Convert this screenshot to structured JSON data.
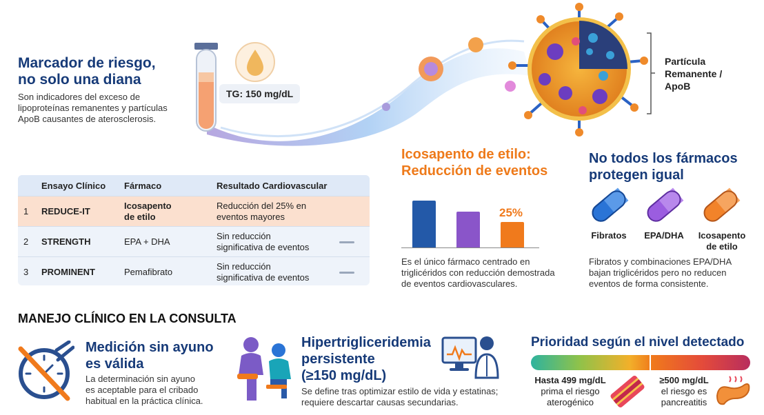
{
  "hero": {
    "title_line1": "Marcador de riesgo,",
    "title_line2": "no solo una diana",
    "desc_line1": "Son indicadores del exceso de",
    "desc_line2": "lipoproteínas remanentes y partículas",
    "desc_line3": "ApoB causantes de aterosclerosis.",
    "tg_label": "TG: 150 mg/dL",
    "particle_label_line1": "Partícula",
    "particle_label_line2": "Remanente /",
    "particle_label_line3": "ApoB"
  },
  "trials": {
    "headers": [
      "Ensayo Clínico",
      "Fármaco",
      "Resultado Cardiovascular"
    ],
    "rows": [
      {
        "num": "1",
        "trial": "REDUCE-IT",
        "drug_l1": "Icosapento",
        "drug_l2": "de etilo",
        "result_l1": "Reducción del 25% en",
        "result_l2": "eventos mayores"
      },
      {
        "num": "2",
        "trial": "STRENGTH",
        "drug_l1": "EPA + DHA",
        "drug_l2": "",
        "result_l1": "Sin reducción",
        "result_l2": "significativa de eventos"
      },
      {
        "num": "3",
        "trial": "PROMINENT",
        "drug_l1": "Pemafibrato",
        "drug_l2": "",
        "result_l1": "Sin reducción",
        "result_l2": "significativa de eventos"
      }
    ]
  },
  "icosapent": {
    "title_line1": "Icosapento de etilo:",
    "title_line2": "Reducción de eventos",
    "desc_line1": "Es el único fármaco centrado en",
    "desc_line2": "triglicéridos con reducción demostrada",
    "desc_line3": "de eventos cardiovasculares."
  },
  "chart_data": {
    "type": "bar",
    "categories": [
      "",
      "",
      ""
    ],
    "values": [
      100,
      77,
      55
    ],
    "colors": [
      "#2359a8",
      "#8a55c9",
      "#f07a1c"
    ],
    "data_labels": [
      "",
      "",
      "25%"
    ],
    "title": "",
    "xlabel": "",
    "ylabel": ""
  },
  "drugs": {
    "title_line1": "No todos los fármacos",
    "title_line2": "protegen igual",
    "pills": [
      {
        "label_l1": "Fibratos",
        "label_l2": "",
        "color": "#2a74d6"
      },
      {
        "label_l1": "EPA/DHA",
        "label_l2": "",
        "color": "#9b5de0"
      },
      {
        "label_l1": "Icosapento",
        "label_l2": "de etilo",
        "color": "#f2832a"
      }
    ],
    "desc_line1": "Fibratos y combinaciones EPA/DHA",
    "desc_line2": "bajan triglicéridos pero no reducen",
    "desc_line3": "eventos de forma consistente."
  },
  "management": {
    "section_title": "MANEJO CLÍNICO EN LA CONSULTA",
    "fasting": {
      "title_line1": "Medición sin ayuno",
      "title_line2": "es válida",
      "desc_line1": "La determinación sin ayuno",
      "desc_line2": "es aceptable para el cribado",
      "desc_line3": "habitual en la práctica clínica."
    },
    "persistent": {
      "title_line1": "Hipertrigliceridemia",
      "title_line2": "persistente",
      "title_line3": "(≥150 mg/dL)",
      "desc_line1": "Se define tras optimizar estilo de vida y estatinas;",
      "desc_line2": "requiere descartar causas secundarias."
    },
    "priority": {
      "title": "Prioridad según el nivel detectado",
      "left_l1": "Hasta 499 mg/dL",
      "left_l2": "prima el riesgo",
      "left_l3": "aterogénico",
      "right_l1": "≥500 mg/dL",
      "right_l2": "el riesgo es",
      "right_l3": "pancreatitis"
    }
  }
}
